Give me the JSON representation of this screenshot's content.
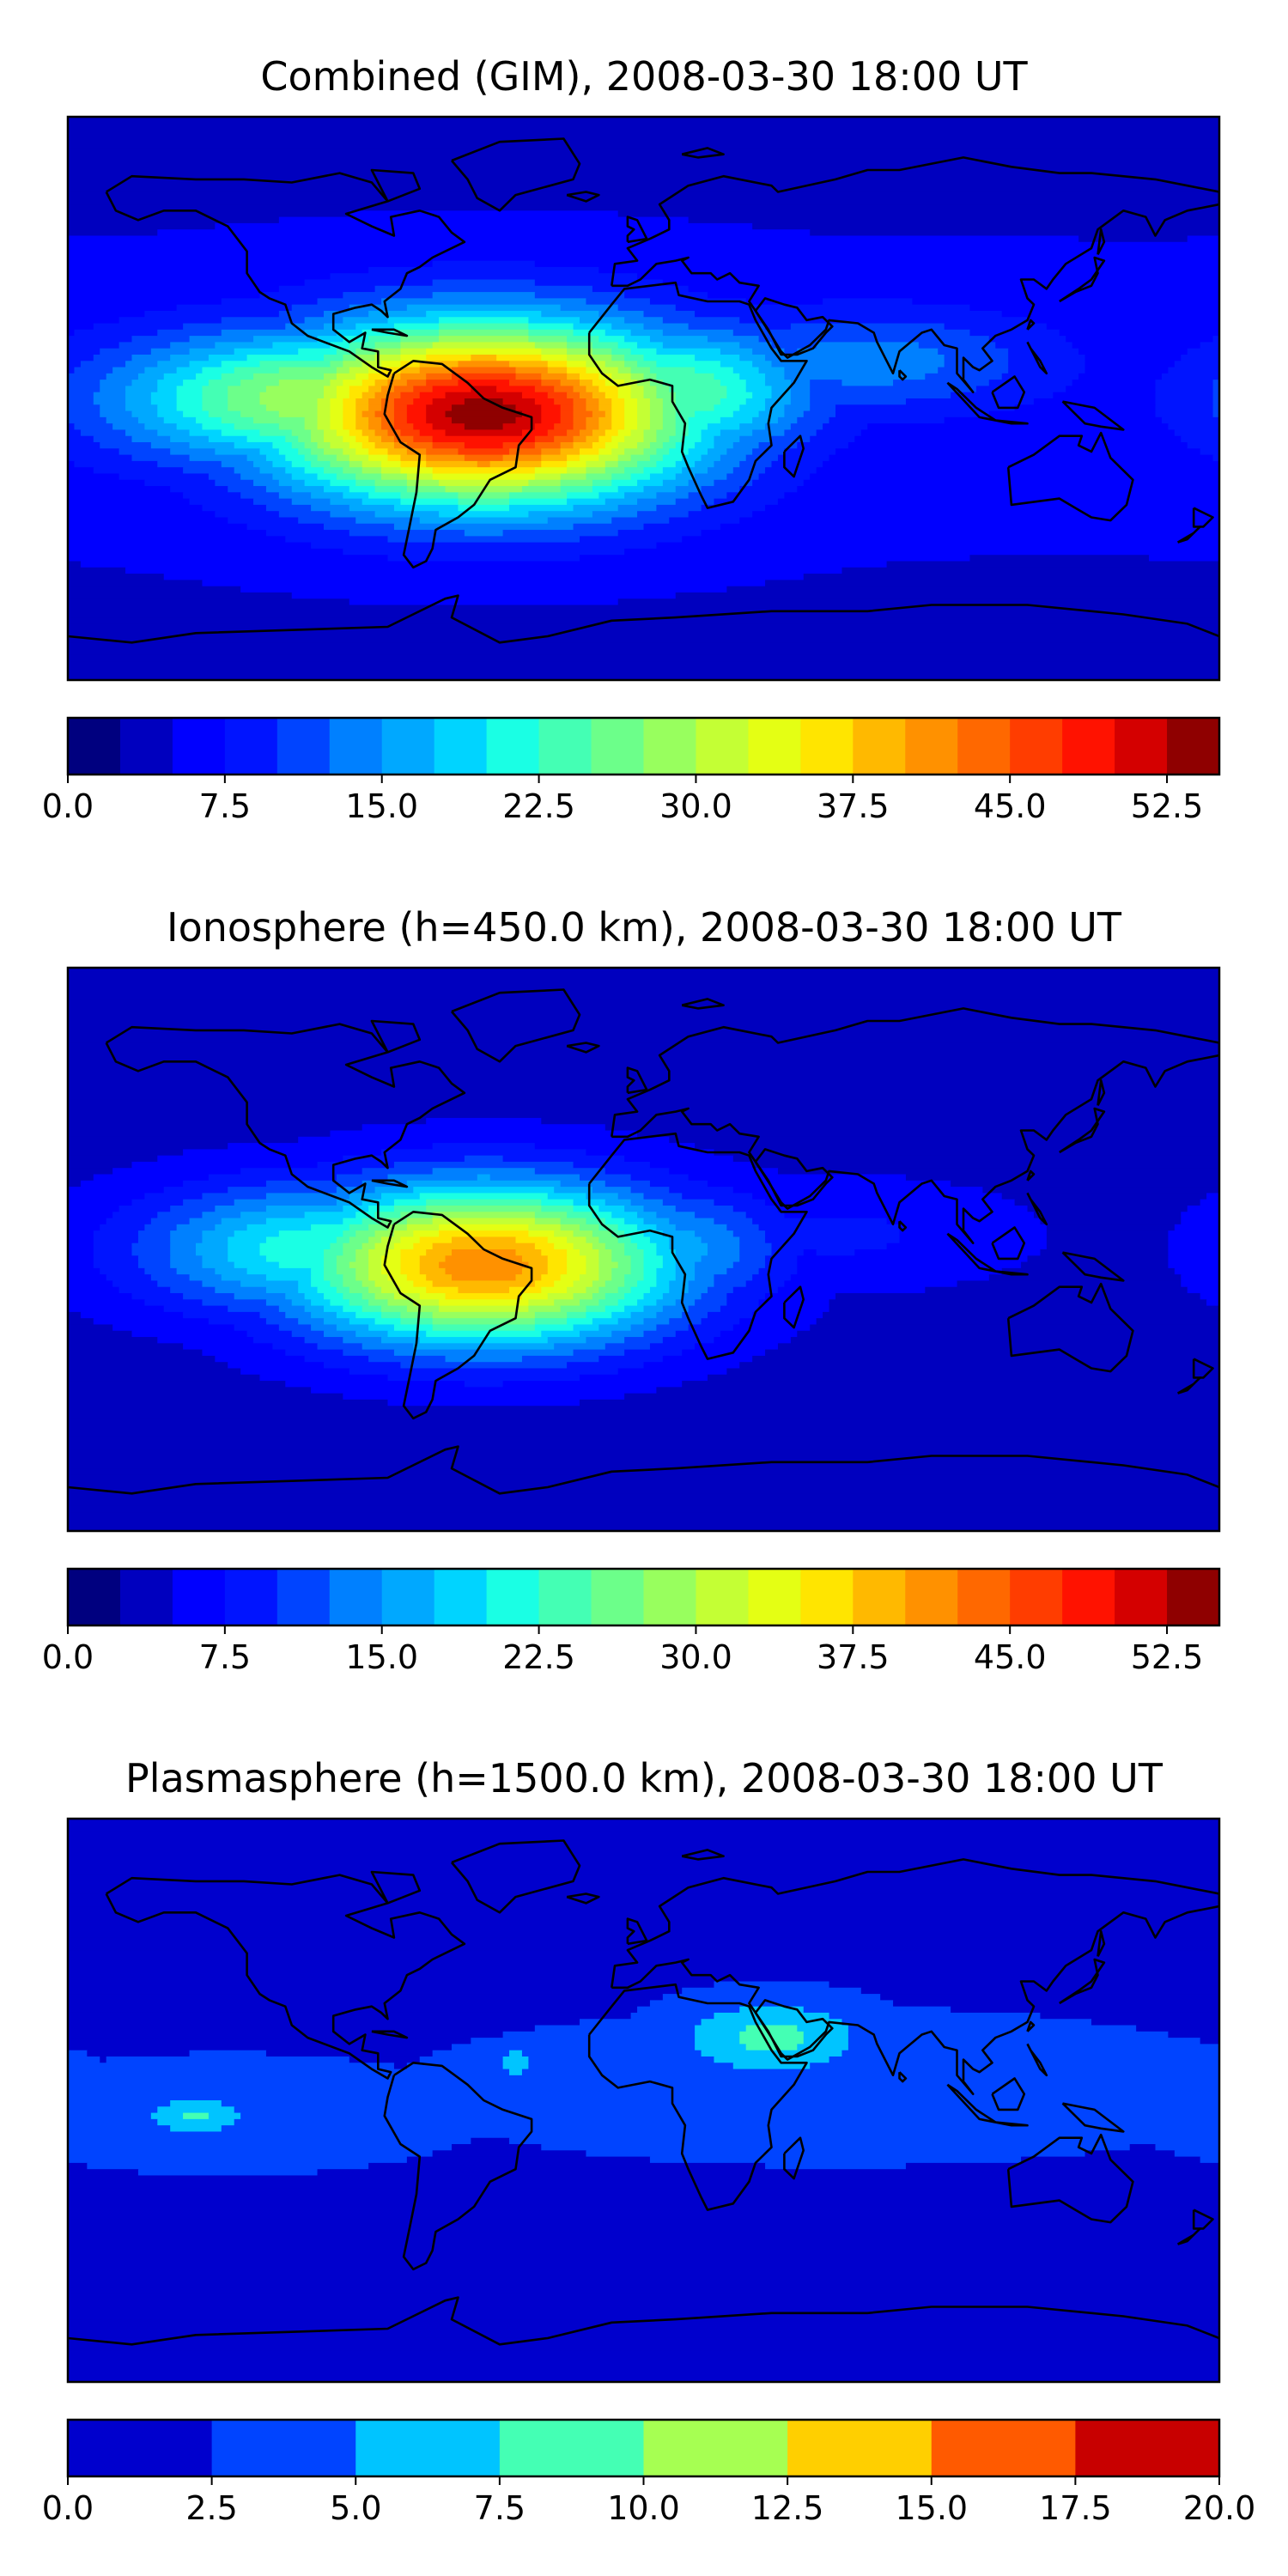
{
  "chart_data": [
    {
      "type": "heatmap",
      "title": "Combined (GIM), 2008-03-30 18:00 UT",
      "colormap": "jet",
      "colorbar": {
        "range": [
          0.0,
          55.0
        ],
        "step": 2.5,
        "tick_values": [
          0.0,
          7.5,
          15.0,
          22.5,
          30.0,
          37.5,
          45.0,
          52.5
        ],
        "tick_labels": [
          "0.0",
          "7.5",
          "15.0",
          "22.5",
          "30.0",
          "37.5",
          "45.0",
          "52.5"
        ],
        "colors": [
          "#00007f",
          "#0000bf",
          "#0000ff",
          "#0014ff",
          "#0044ff",
          "#0080ff",
          "#00a8ff",
          "#00d4ff",
          "#1affe4",
          "#44ffb4",
          "#6cff8a",
          "#98ff5e",
          "#c4ff34",
          "#e4ff14",
          "#ffe500",
          "#ffb900",
          "#ff9100",
          "#ff6800",
          "#ff3d00",
          "#ff1200",
          "#d40000",
          "#8f0000"
        ]
      },
      "peak": {
        "lon": -50,
        "lat": -5,
        "value": 54.0
      },
      "field_features": [
        {
          "lon": -50,
          "lat": -5,
          "value": 54,
          "spread_lon": 45,
          "spread_lat": 20
        },
        {
          "lon": -100,
          "lat": 0,
          "value": 30,
          "spread_lon": 45,
          "spread_lat": 15
        },
        {
          "lon": 10,
          "lat": 2,
          "value": 25,
          "spread_lon": 30,
          "spread_lat": 15
        },
        {
          "lon": 70,
          "lat": 12,
          "value": 14,
          "spread_lon": 40,
          "spread_lat": 12
        },
        {
          "lon": 140,
          "lat": 45,
          "value": 5,
          "spread_lon": 40,
          "spread_lat": 15
        }
      ],
      "background_value": 5.5
    },
    {
      "type": "heatmap",
      "title": "Ionosphere  (h=450.0 km), 2008-03-30 18:00 UT",
      "colormap": "jet",
      "colorbar": {
        "range": [
          0.0,
          55.0
        ],
        "step": 2.5,
        "tick_values": [
          0.0,
          7.5,
          15.0,
          22.5,
          30.0,
          37.5,
          45.0,
          52.5
        ],
        "tick_labels": [
          "0.0",
          "7.5",
          "15.0",
          "22.5",
          "30.0",
          "37.5",
          "45.0",
          "52.5"
        ],
        "colors": [
          "#00007f",
          "#0000bf",
          "#0000ff",
          "#0014ff",
          "#0044ff",
          "#0080ff",
          "#00a8ff",
          "#00d4ff",
          "#1affe4",
          "#44ffb4",
          "#6cff8a",
          "#98ff5e",
          "#c4ff34",
          "#e4ff14",
          "#ffe500",
          "#ffb900",
          "#ff9100",
          "#ff6800",
          "#ff3d00",
          "#ff1200",
          "#d40000",
          "#8f0000"
        ]
      },
      "peak": {
        "lon": -50,
        "lat": -5,
        "value": 43.0
      },
      "field_features": [
        {
          "lon": -50,
          "lat": -5,
          "value": 42,
          "spread_lon": 42,
          "spread_lat": 18
        },
        {
          "lon": -100,
          "lat": 0,
          "value": 22,
          "spread_lon": 40,
          "spread_lat": 15
        },
        {
          "lon": 10,
          "lat": 0,
          "value": 16,
          "spread_lon": 25,
          "spread_lat": 14
        },
        {
          "lon": 60,
          "lat": 5,
          "value": 8,
          "spread_lon": 40,
          "spread_lat": 12
        }
      ],
      "background_value": 4.0
    },
    {
      "type": "heatmap",
      "title": "Plasmasphere (h=1500.0 km), 2008-03-30 18:00 UT",
      "colormap": "jet",
      "colorbar": {
        "range": [
          0.0,
          20.0
        ],
        "step": 2.5,
        "tick_values": [
          0.0,
          2.5,
          5.0,
          7.5,
          10.0,
          12.5,
          15.0,
          17.5,
          20.0
        ],
        "tick_labels": [
          "0.0",
          "2.5",
          "5.0",
          "7.5",
          "10.0",
          "12.5",
          "15.0",
          "17.5",
          "20.0"
        ],
        "colors": [
          "#0000cd",
          "#0044ff",
          "#00c4ff",
          "#44ffb4",
          "#a6ff52",
          "#ffcf00",
          "#ff5a00",
          "#c80000"
        ]
      },
      "peak": {
        "lon": 40,
        "lat": 20,
        "value": 8.5
      },
      "field_features": [
        {
          "lon": 40,
          "lat": 20,
          "value": 8.5,
          "spread_lon": 20,
          "spread_lat": 8
        },
        {
          "lon": -140,
          "lat": -5,
          "value": 7.8,
          "spread_lon": 12,
          "spread_lat": 4
        },
        {
          "lon": -40,
          "lat": 12,
          "value": 7.6,
          "spread_lon": 4,
          "spread_lat": 3
        },
        {
          "lon": 60,
          "lat": 5,
          "value": 3.2,
          "spread_lon": 90,
          "spread_lat": 18
        },
        {
          "lon": -130,
          "lat": -5,
          "value": 3.0,
          "spread_lon": 60,
          "spread_lat": 15
        }
      ],
      "background_value": 2.2
    }
  ]
}
